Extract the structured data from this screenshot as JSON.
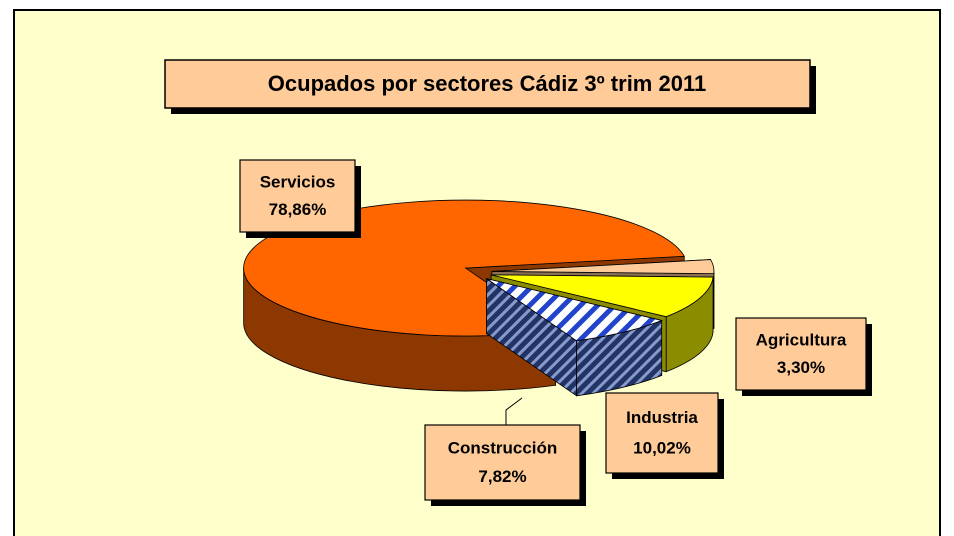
{
  "chart_data": {
    "type": "pie3d",
    "title": "Ocupados por sectores Cádiz 3º trim 2011",
    "categories": [
      "Agricultura",
      "Industria",
      "Construcción",
      "Servicios"
    ],
    "values": [
      3.3,
      10.02,
      7.82,
      78.86
    ],
    "value_labels": [
      "3,30%",
      "10,02%",
      "7,82%",
      "78,86%"
    ],
    "colors": [
      "#ffcc99",
      "#ffff00",
      "#3355aa",
      "#ff6600"
    ]
  }
}
